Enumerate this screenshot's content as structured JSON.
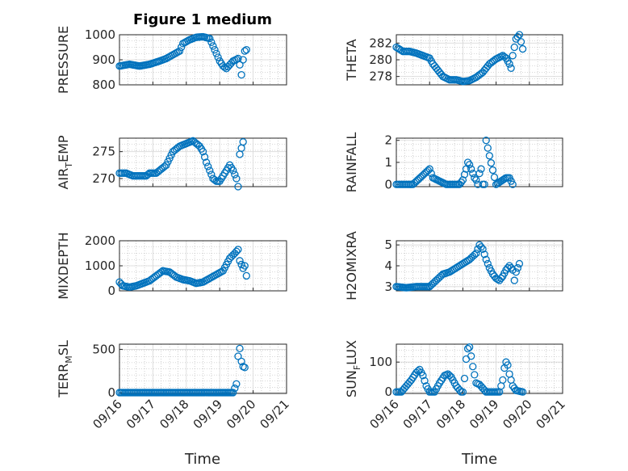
{
  "figure": {
    "title": "Figure 1 medium",
    "xlabel": "Time"
  },
  "colors": {
    "marker": "#0072BD",
    "axis": "#262626",
    "grid": "#b0b0b0"
  },
  "x_ticks": [
    "09/16",
    "09/17",
    "09/18",
    "09/19",
    "09/20",
    "09/21"
  ],
  "chart_data": [
    {
      "type": "scatter",
      "ylabel": "PRESSURE",
      "ylabel_sub": "",
      "ylabel_tail": "",
      "ylim": [
        800,
        1000
      ],
      "yticks": [
        800,
        900,
        1000
      ],
      "grid": true,
      "x": [
        16.0,
        16.3,
        16.6,
        16.9,
        17.2,
        17.4,
        17.6,
        17.8,
        17.9,
        18.1,
        18.3,
        18.5,
        18.7,
        18.8,
        18.9,
        19.0,
        19.1,
        19.2,
        19.4,
        19.55,
        19.6,
        19.65,
        19.7,
        19.75,
        19.8
      ],
      "y": [
        875,
        882,
        875,
        882,
        895,
        905,
        920,
        935,
        965,
        980,
        990,
        992,
        985,
        955,
        925,
        895,
        875,
        865,
        895,
        905,
        880,
        840,
        900,
        935,
        940
      ]
    },
    {
      "type": "scatter",
      "ylabel": "THETA",
      "ylabel_sub": "",
      "ylabel_tail": "",
      "ylim": [
        277,
        283
      ],
      "yticks": [
        278,
        280,
        282
      ],
      "grid": true,
      "x": [
        16.0,
        16.2,
        16.4,
        16.6,
        16.8,
        17.0,
        17.1,
        17.2,
        17.3,
        17.4,
        17.6,
        17.8,
        18.0,
        18.2,
        18.4,
        18.6,
        18.8,
        19.0,
        19.2,
        19.3,
        19.4,
        19.45,
        19.5,
        19.6,
        19.7,
        19.8
      ],
      "y": [
        281.5,
        281,
        281,
        280.8,
        280.5,
        280.2,
        279.5,
        279,
        278.5,
        278,
        277.6,
        277.6,
        277.4,
        277.5,
        277.9,
        278.5,
        279.5,
        280.1,
        280.5,
        280.2,
        279.5,
        279,
        280.5,
        282.5,
        283,
        281.3
      ]
    },
    {
      "type": "scatter",
      "ylabel": "AIR",
      "ylabel_sub": "T",
      "ylabel_tail": "EMP",
      "ylim": [
        268.5,
        277.5
      ],
      "yticks": [
        270,
        275
      ],
      "grid": true,
      "x": [
        16.0,
        16.2,
        16.4,
        16.6,
        16.8,
        16.9,
        17.0,
        17.1,
        17.2,
        17.4,
        17.6,
        17.8,
        18.0,
        18.2,
        18.4,
        18.5,
        18.6,
        18.7,
        18.8,
        18.9,
        19.0,
        19.1,
        19.2,
        19.3,
        19.4,
        19.5,
        19.55,
        19.6,
        19.7
      ],
      "y": [
        271,
        271,
        270.5,
        270.5,
        270.5,
        271,
        271,
        271,
        271.5,
        272.5,
        275,
        276,
        276.5,
        277,
        276,
        275,
        273,
        271.5,
        270,
        269.5,
        269.5,
        270.5,
        271.5,
        272.5,
        271.5,
        270,
        268.5,
        274.5,
        276.8
      ]
    },
    {
      "type": "scatter",
      "ylabel": "RAINFALL",
      "ylabel_sub": "",
      "ylabel_tail": "",
      "ylim": [
        -0.1,
        2.1
      ],
      "yticks": [
        0,
        1,
        2
      ],
      "grid": true,
      "x": [
        16.0,
        16.5,
        17.0,
        17.1,
        17.5,
        17.9,
        18.0,
        18.1,
        18.15,
        18.2,
        18.25,
        18.3,
        18.35,
        18.4,
        18.45,
        18.5,
        18.55,
        18.6,
        18.65,
        18.7,
        18.8,
        19.0,
        19.3,
        19.4,
        19.5
      ],
      "y": [
        0,
        0,
        0.7,
        0.3,
        0,
        0,
        0.2,
        0.7,
        1.0,
        0.9,
        0.7,
        0.5,
        0.3,
        0.2,
        0,
        0.5,
        0.7,
        0,
        0,
        2.0,
        1.3,
        0,
        0.3,
        0.3,
        0
      ]
    },
    {
      "type": "scatter",
      "ylabel": "MIXDEPTH",
      "ylabel_sub": "",
      "ylabel_tail": "",
      "ylim": [
        0,
        2000
      ],
      "yticks": [
        0,
        1000,
        2000
      ],
      "grid": true,
      "x": [
        16.0,
        16.1,
        16.3,
        16.5,
        16.7,
        16.9,
        17.1,
        17.3,
        17.5,
        17.7,
        17.9,
        18.1,
        18.3,
        18.5,
        18.7,
        18.9,
        19.1,
        19.3,
        19.45,
        19.55,
        19.6,
        19.65,
        19.7,
        19.75,
        19.8
      ],
      "y": [
        350,
        200,
        150,
        200,
        300,
        400,
        600,
        800,
        750,
        550,
        450,
        400,
        300,
        350,
        500,
        650,
        800,
        1300,
        1500,
        1650,
        1200,
        1050,
        900,
        1000,
        600
      ]
    },
    {
      "type": "scatter",
      "ylabel": "H2OMIXRA",
      "ylabel_sub": "",
      "ylabel_tail": "",
      "ylim": [
        2.8,
        5.2
      ],
      "yticks": [
        3,
        4,
        5
      ],
      "grid": true,
      "x": [
        16.0,
        16.3,
        16.6,
        16.8,
        17.0,
        17.2,
        17.4,
        17.6,
        17.8,
        18.0,
        18.2,
        18.4,
        18.5,
        18.6,
        18.7,
        18.8,
        18.9,
        19.0,
        19.1,
        19.2,
        19.3,
        19.4,
        19.5,
        19.55,
        19.6,
        19.7
      ],
      "y": [
        3.0,
        2.95,
        3.0,
        3.0,
        3.0,
        3.3,
        3.6,
        3.7,
        3.9,
        4.1,
        4.3,
        4.6,
        5.0,
        4.8,
        4.3,
        3.9,
        3.6,
        3.4,
        3.3,
        3.5,
        3.8,
        4.0,
        3.8,
        3.3,
        3.7,
        4.1
      ]
    },
    {
      "type": "scatter",
      "ylabel": "TERR",
      "ylabel_sub": "M",
      "ylabel_tail": "SL",
      "ylim": [
        -10,
        560
      ],
      "yticks": [
        0,
        500
      ],
      "grid": true,
      "x": [
        16.0,
        16.5,
        17.0,
        17.5,
        18.0,
        18.5,
        19.0,
        19.4,
        19.5,
        19.55,
        19.6,
        19.65,
        19.7,
        19.75
      ],
      "y": [
        0,
        0,
        0,
        0,
        0,
        0,
        0,
        0,
        100,
        420,
        510,
        360,
        300,
        290
      ]
    },
    {
      "type": "scatter",
      "ylabel": "SUN",
      "ylabel_sub": "F",
      "ylabel_tail": "LUX",
      "ylim": [
        -5,
        160
      ],
      "yticks": [
        0,
        100
      ],
      "grid": true,
      "x": [
        16.0,
        16.15,
        16.3,
        16.45,
        16.6,
        16.7,
        16.8,
        16.9,
        17.0,
        17.15,
        17.3,
        17.45,
        17.55,
        17.65,
        17.8,
        17.95,
        18.0,
        18.05,
        18.1,
        18.15,
        18.2,
        18.25,
        18.3,
        18.4,
        18.5,
        18.7,
        18.9,
        19.1,
        19.2,
        19.25,
        19.3,
        19.35,
        19.4,
        19.5,
        19.6,
        19.8
      ],
      "y": [
        0,
        0,
        20,
        40,
        65,
        75,
        55,
        20,
        0,
        0,
        30,
        55,
        60,
        50,
        20,
        0,
        0,
        45,
        110,
        145,
        150,
        120,
        85,
        30,
        25,
        0,
        0,
        0,
        40,
        80,
        100,
        90,
        60,
        20,
        5,
        0
      ]
    }
  ]
}
